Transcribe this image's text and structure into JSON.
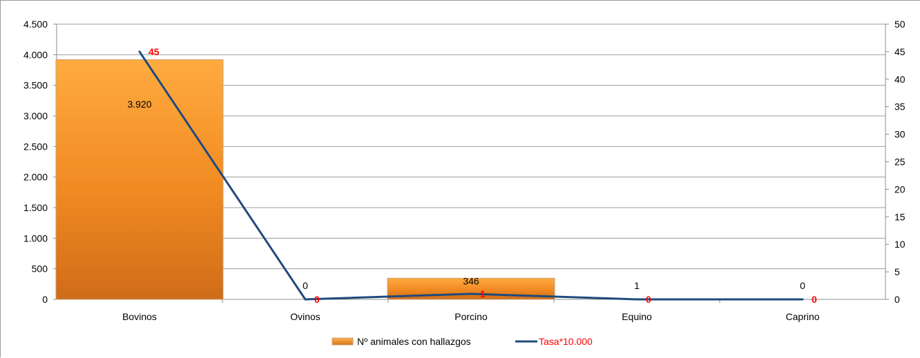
{
  "chart_data": {
    "type": "bar",
    "categories": [
      "Bovinos",
      "Ovinos",
      "Porcino",
      "Equino",
      "Caprino"
    ],
    "series": [
      {
        "name": "Nº animales con hallazgos",
        "kind": "bar",
        "axis": "left",
        "values": [
          3920,
          0,
          346,
          1,
          0
        ],
        "data_labels": [
          "3.920",
          "0",
          "346",
          "1",
          "0"
        ],
        "color": "#f39a2d"
      },
      {
        "name": "Tasa*10.000",
        "kind": "line",
        "axis": "right",
        "values": [
          45,
          0,
          1,
          0,
          0
        ],
        "data_labels": [
          "45",
          "0",
          "1",
          "0",
          "0"
        ],
        "color": "#1f497d",
        "label_color": "#ff0000"
      }
    ],
    "y_left": {
      "ylim": [
        0,
        4500
      ],
      "ticks": [
        0,
        500,
        1000,
        1500,
        2000,
        2500,
        3000,
        3500,
        4000,
        4500
      ],
      "tick_labels": [
        "0",
        "500",
        "1.000",
        "1.500",
        "2.000",
        "2.500",
        "3.000",
        "3.500",
        "4.000",
        "4.500"
      ]
    },
    "y_right": {
      "ylim": [
        0,
        50
      ],
      "ticks": [
        0,
        5,
        10,
        15,
        20,
        25,
        30,
        35,
        40,
        45,
        50
      ],
      "tick_labels": [
        "0",
        "5",
        "10",
        "15",
        "20",
        "25",
        "30",
        "35",
        "40",
        "45",
        "50"
      ]
    },
    "grid": true,
    "legend_position": "bottom-center"
  }
}
